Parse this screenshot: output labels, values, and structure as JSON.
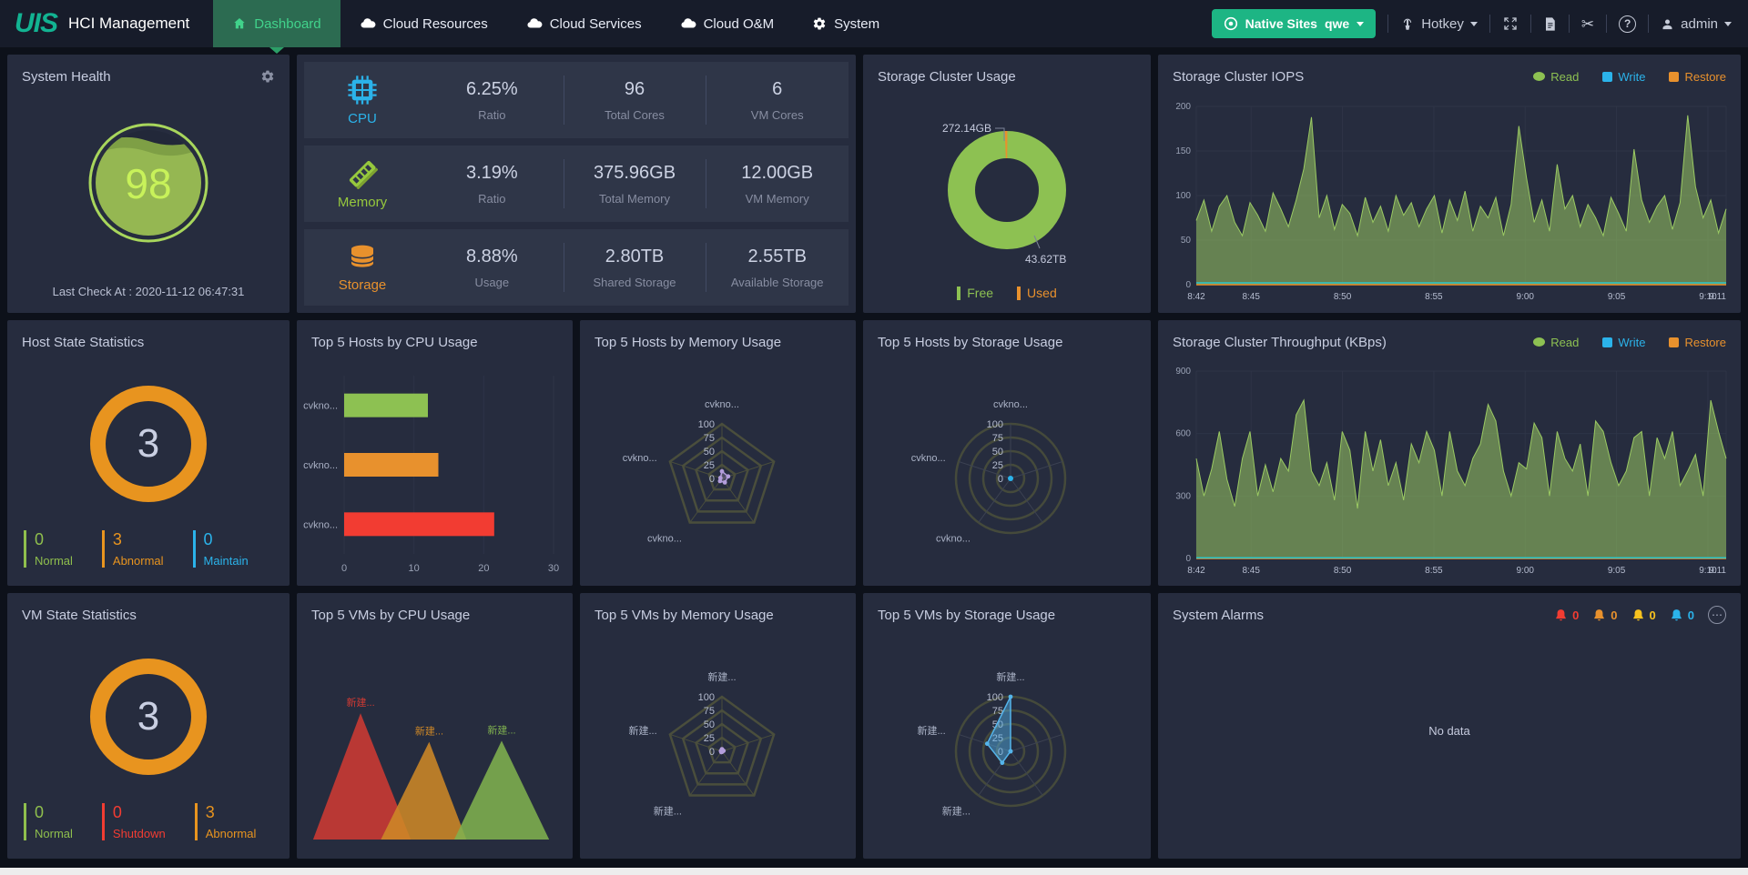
{
  "navbar": {
    "logo": "UIS",
    "product": "HCI Management",
    "items": [
      {
        "label": "Dashboard",
        "active": true
      },
      {
        "label": "Cloud Resources"
      },
      {
        "label": "Cloud Services"
      },
      {
        "label": "Cloud O&M"
      },
      {
        "label": "System"
      }
    ],
    "site_button": {
      "label": "Native Sites",
      "site": "qwe"
    },
    "hotkey_label": "Hotkey",
    "user": "admin"
  },
  "panels": {
    "system_health": {
      "title": "System Health",
      "score": "98",
      "last_check": "Last Check At : 2020-11-12 06:47:31"
    },
    "resources": {
      "rows": [
        {
          "name": "CPU",
          "cells": [
            {
              "value": "6.25%",
              "label": "Ratio"
            },
            {
              "value": "96",
              "label": "Total Cores"
            },
            {
              "value": "6",
              "label": "VM Cores"
            }
          ]
        },
        {
          "name": "Memory",
          "cells": [
            {
              "value": "3.19%",
              "label": "Ratio"
            },
            {
              "value": "375.96GB",
              "label": "Total Memory"
            },
            {
              "value": "12.00GB",
              "label": "VM Memory"
            }
          ]
        },
        {
          "name": "Storage",
          "cells": [
            {
              "value": "8.88%",
              "label": "Usage"
            },
            {
              "value": "2.80TB",
              "label": "Shared Storage"
            },
            {
              "value": "2.55TB",
              "label": "Available Storage"
            }
          ]
        }
      ]
    },
    "storage_usage": {
      "title": "Storage Cluster Usage",
      "legend": [
        "Free",
        "Used"
      ]
    },
    "iops": {
      "title": "Storage Cluster IOPS",
      "legend": [
        "Read",
        "Write",
        "Restore"
      ]
    },
    "throughput": {
      "title": "Storage Cluster Throughput (KBps)",
      "legend": [
        "Read",
        "Write",
        "Restore"
      ]
    },
    "host_state": {
      "title": "Host State Statistics",
      "total": "3",
      "legend": [
        {
          "count": "0",
          "label": "Normal"
        },
        {
          "count": "3",
          "label": "Abnormal"
        },
        {
          "count": "0",
          "label": "Maintain"
        }
      ]
    },
    "vm_state": {
      "title": "VM State Statistics",
      "total": "3",
      "legend": [
        {
          "count": "0",
          "label": "Normal"
        },
        {
          "count": "0",
          "label": "Shutdown"
        },
        {
          "count": "3",
          "label": "Abnormal"
        }
      ]
    },
    "hosts_cpu": {
      "title": "Top 5 Hosts by CPU Usage"
    },
    "hosts_memory": {
      "title": "Top 5 Hosts by Memory Usage"
    },
    "hosts_storage": {
      "title": "Top 5 Hosts by Storage Usage"
    },
    "vms_cpu": {
      "title": "Top 5 VMs by CPU Usage"
    },
    "vms_memory": {
      "title": "Top 5 VMs by Memory Usage"
    },
    "vms_storage": {
      "title": "Top 5 VMs by Storage Usage"
    },
    "alarms": {
      "title": "System Alarms",
      "levels": [
        {
          "count": "0"
        },
        {
          "count": "0"
        },
        {
          "count": "0"
        },
        {
          "count": "0"
        }
      ],
      "no_data": "No data"
    }
  },
  "chart_data": [
    {
      "id": "health_gauge",
      "type": "gauge",
      "value": 98,
      "max": 100,
      "color": "#94b651"
    },
    {
      "id": "storage_donut",
      "type": "pie",
      "labels": [
        "Free",
        "Used"
      ],
      "values_display": [
        "43.62TB",
        "272.14GB"
      ],
      "used_fraction": 0.007,
      "callout_used": "272.14GB",
      "callout_free": "43.62TB",
      "colors": {
        "free": "#8dc152",
        "used": "#e8912d"
      }
    },
    {
      "id": "iops",
      "type": "area",
      "title": "Storage Cluster IOPS",
      "ylim": [
        0,
        200
      ],
      "y_ticks": [
        0,
        50,
        100,
        150,
        200
      ],
      "x_ticks": [
        "8:42",
        "8:45",
        "8:50",
        "8:55",
        "9:00",
        "9:05",
        "9:10",
        "9:11"
      ],
      "series": [
        {
          "name": "Read",
          "color": "#9bca63",
          "area": true,
          "values": [
            72,
            95,
            60,
            88,
            100,
            70,
            55,
            92,
            78,
            60,
            103,
            85,
            65,
            95,
            130,
            188,
            75,
            100,
            62,
            90,
            80,
            55,
            98,
            70,
            88,
            60,
            100,
            78,
            92,
            65,
            85,
            100,
            58,
            95,
            72,
            105,
            60,
            88,
            75,
            98,
            55,
            90,
            178,
            120,
            70,
            95,
            60,
            135,
            85,
            100,
            65,
            90,
            75,
            55,
            98,
            80,
            60,
            152,
            95,
            70,
            88,
            100,
            62,
            92,
            190,
            110,
            75,
            95,
            58,
            85
          ]
        },
        {
          "name": "Restore",
          "color": "#e8912d",
          "values": [
            0,
            0
          ]
        },
        {
          "name": "Write",
          "color": "#2ec7c9",
          "values": [
            2,
            2
          ]
        }
      ]
    },
    {
      "id": "throughput",
      "type": "area",
      "title": "Storage Cluster Throughput (KBps)",
      "ylim": [
        0,
        900
      ],
      "y_ticks": [
        0,
        300,
        600,
        900
      ],
      "x_ticks": [
        "8:42",
        "8:45",
        "8:50",
        "8:55",
        "9:00",
        "9:05",
        "9:10",
        "9:11"
      ],
      "series": [
        {
          "name": "Read",
          "color": "#9bca63",
          "area": true,
          "values": [
            480,
            300,
            430,
            610,
            380,
            250,
            480,
            610,
            300,
            450,
            320,
            480,
            420,
            690,
            760,
            420,
            350,
            460,
            280,
            610,
            520,
            240,
            610,
            420,
            570,
            350,
            460,
            280,
            550,
            460,
            610,
            520,
            300,
            610,
            420,
            350,
            480,
            550,
            740,
            660,
            420,
            300,
            460,
            430,
            650,
            580,
            300,
            610,
            480,
            420,
            550,
            300,
            660,
            610,
            460,
            350,
            420,
            580,
            610,
            300,
            580,
            480,
            610,
            350,
            420,
            500,
            300,
            760,
            610,
            480
          ]
        },
        {
          "name": "Restore",
          "color": "#e8912d",
          "values": [
            0,
            0
          ]
        },
        {
          "name": "Write",
          "color": "#2ec7c9",
          "values": [
            3,
            3
          ]
        }
      ]
    },
    {
      "id": "hosts_cpu_bar",
      "type": "bar",
      "orientation": "horizontal",
      "categories": [
        "cvkno...",
        "cvkno...",
        "cvkno..."
      ],
      "values": [
        12,
        13.5,
        21.5
      ],
      "colors": [
        "#8dc152",
        "#e8912d",
        "#f23c32"
      ],
      "xlim": [
        0,
        30
      ],
      "x_ticks": [
        0,
        10,
        20,
        30
      ]
    },
    {
      "id": "hosts_memory_radar",
      "type": "radar",
      "shape": "polygon",
      "ticks": [
        0,
        25,
        50,
        75,
        100
      ],
      "axis_labels": [
        "cvkno...",
        "cvkno...",
        "cvkno...",
        "",
        ""
      ],
      "values": [
        13,
        3,
        6,
        9,
        12
      ],
      "color": "#b39ddb"
    },
    {
      "id": "hosts_storage_radar",
      "type": "radar",
      "shape": "circle",
      "ticks": [
        0,
        25,
        50,
        75,
        100
      ],
      "axis_labels": [
        "cvkno...",
        "cvkno...",
        "cvkno...",
        "",
        ""
      ],
      "values": [
        0,
        0,
        0,
        0,
        0
      ],
      "color": "#2bb3ea"
    },
    {
      "id": "vms_cpu_tri",
      "type": "pictorial-triangle",
      "items": [
        {
          "label": "新建...",
          "color": "#ce3a33",
          "x1": 0.05,
          "x2": 0.41,
          "px": 0.225,
          "py": 0.36
        },
        {
          "label": "新建...",
          "color": "#cd8727",
          "x1": 0.3,
          "x2": 0.615,
          "px": 0.478,
          "py": 0.49
        },
        {
          "label": "新建...",
          "color": "#7fb04f",
          "x1": 0.57,
          "x2": 0.92,
          "px": 0.745,
          "py": 0.485
        }
      ]
    },
    {
      "id": "vms_memory_radar",
      "type": "radar",
      "shape": "polygon",
      "ticks": [
        0,
        25,
        50,
        75,
        100
      ],
      "axis_labels": [
        "新建...",
        "新建...",
        "新建...",
        "",
        ""
      ],
      "values": [
        4,
        2,
        2,
        1,
        3
      ],
      "color": "#b39ddb"
    },
    {
      "id": "vms_storage_radar",
      "type": "radar",
      "shape": "circle",
      "ticks": [
        0,
        25,
        50,
        75,
        100
      ],
      "axis_labels": [
        "新建...",
        "新建...",
        "新建...",
        "",
        ""
      ],
      "values": [
        100,
        45,
        26,
        0,
        0
      ],
      "color": "#54b4ea",
      "fill": true
    },
    {
      "id": "host_state_ring",
      "type": "ring",
      "total": 3,
      "segments": [
        {
          "label": "Normal",
          "value": 0,
          "color": "#8fbf4d"
        },
        {
          "label": "Abnormal",
          "value": 3,
          "color": "#e8941f"
        },
        {
          "label": "Maintain",
          "value": 0,
          "color": "#2bb3ea"
        }
      ]
    },
    {
      "id": "vm_state_ring",
      "type": "ring",
      "total": 3,
      "segments": [
        {
          "label": "Normal",
          "value": 0,
          "color": "#8fbf4d"
        },
        {
          "label": "Shutdown",
          "value": 0,
          "color": "#f23c32"
        },
        {
          "label": "Abnormal",
          "value": 3,
          "color": "#e8941f"
        }
      ]
    }
  ]
}
